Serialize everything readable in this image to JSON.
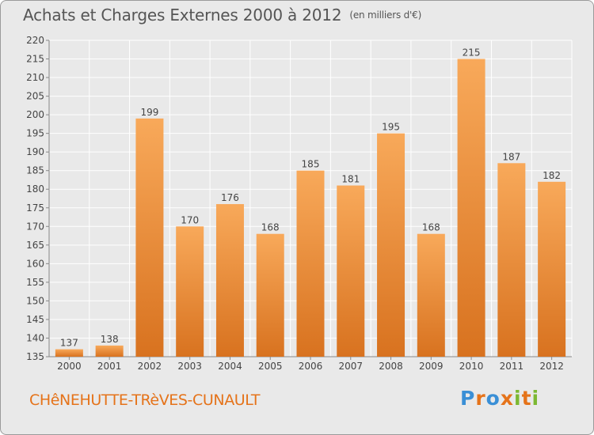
{
  "header": {
    "title": "Achats et Charges Externes 2000 à 2012",
    "unit": "(en milliers d'€)"
  },
  "commune": "CHêNEHUTTE-TRèVES-CUNAULT",
  "logo": {
    "text": "Proxiti",
    "letter_colors": [
      "#3a8fd6",
      "#e5731a",
      "#3a8fd6",
      "#e5731a",
      "#7cb832",
      "#e5731a",
      "#7cb832"
    ]
  },
  "colors": {
    "bar_light": "#f8a95a",
    "bar_dark": "#d8721f",
    "label": "#444444",
    "grid": "#ffffff",
    "plot_bg": "#e9e9e9"
  },
  "chart_data": {
    "type": "bar",
    "title": "Achats et Charges Externes 2000 à 2012",
    "subtitle": "(en milliers d'€)",
    "xlabel": "",
    "ylabel": "",
    "categories": [
      "2000",
      "2001",
      "2002",
      "2003",
      "2004",
      "2005",
      "2006",
      "2007",
      "2008",
      "2009",
      "2010",
      "2011",
      "2012"
    ],
    "values": [
      137,
      138,
      199,
      170,
      176,
      168,
      185,
      181,
      195,
      168,
      215,
      187,
      182
    ],
    "ylim": [
      135,
      220
    ],
    "yticks": [
      135,
      140,
      145,
      150,
      155,
      160,
      165,
      170,
      175,
      180,
      185,
      190,
      195,
      200,
      205,
      210,
      215,
      220
    ],
    "grid": true,
    "legend": "none",
    "data_labels": true
  }
}
